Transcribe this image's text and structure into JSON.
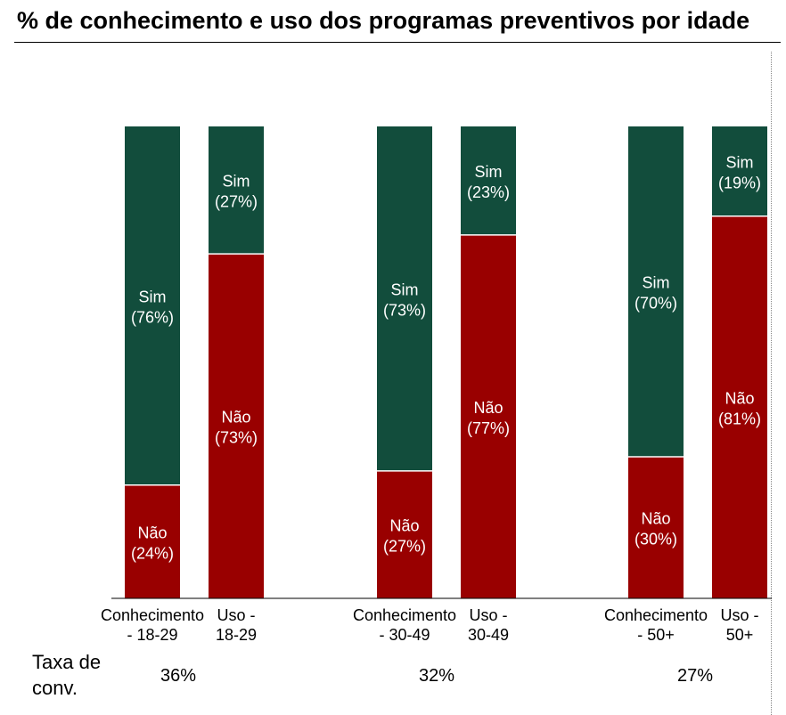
{
  "title": "% de conhecimento e uso dos programas preventivos por idade",
  "colors": {
    "sim": "#124d3c",
    "nao": "#990000"
  },
  "chart_data": {
    "type": "bar",
    "stacked": true,
    "categories": [
      [
        "Conhecimento",
        "- 18-29"
      ],
      [
        "Uso -",
        "18-29"
      ],
      [
        "Conhecimento",
        "- 30-49"
      ],
      [
        "Uso -",
        "30-49"
      ],
      [
        "Conhecimento",
        "- 50+"
      ],
      [
        "Uso -",
        "50+"
      ]
    ],
    "series": [
      {
        "name": "Não",
        "values": [
          24,
          73,
          27,
          77,
          30,
          81
        ],
        "labels": [
          "(24%)",
          "(73%)",
          "(27%)",
          "(77%)",
          "(30%)",
          "(81%)"
        ]
      },
      {
        "name": "Sim",
        "values": [
          76,
          27,
          73,
          23,
          70,
          19
        ],
        "labels": [
          "(76%)",
          "(27%)",
          "(73%)",
          "(23%)",
          "(70%)",
          "(19%)"
        ]
      }
    ],
    "ylim": [
      0,
      100
    ],
    "grid": false,
    "legend": "none",
    "conversion_rate": {
      "label": [
        "Taxa de",
        "conv."
      ],
      "values": [
        "36%",
        "32%",
        "27%"
      ]
    }
  }
}
